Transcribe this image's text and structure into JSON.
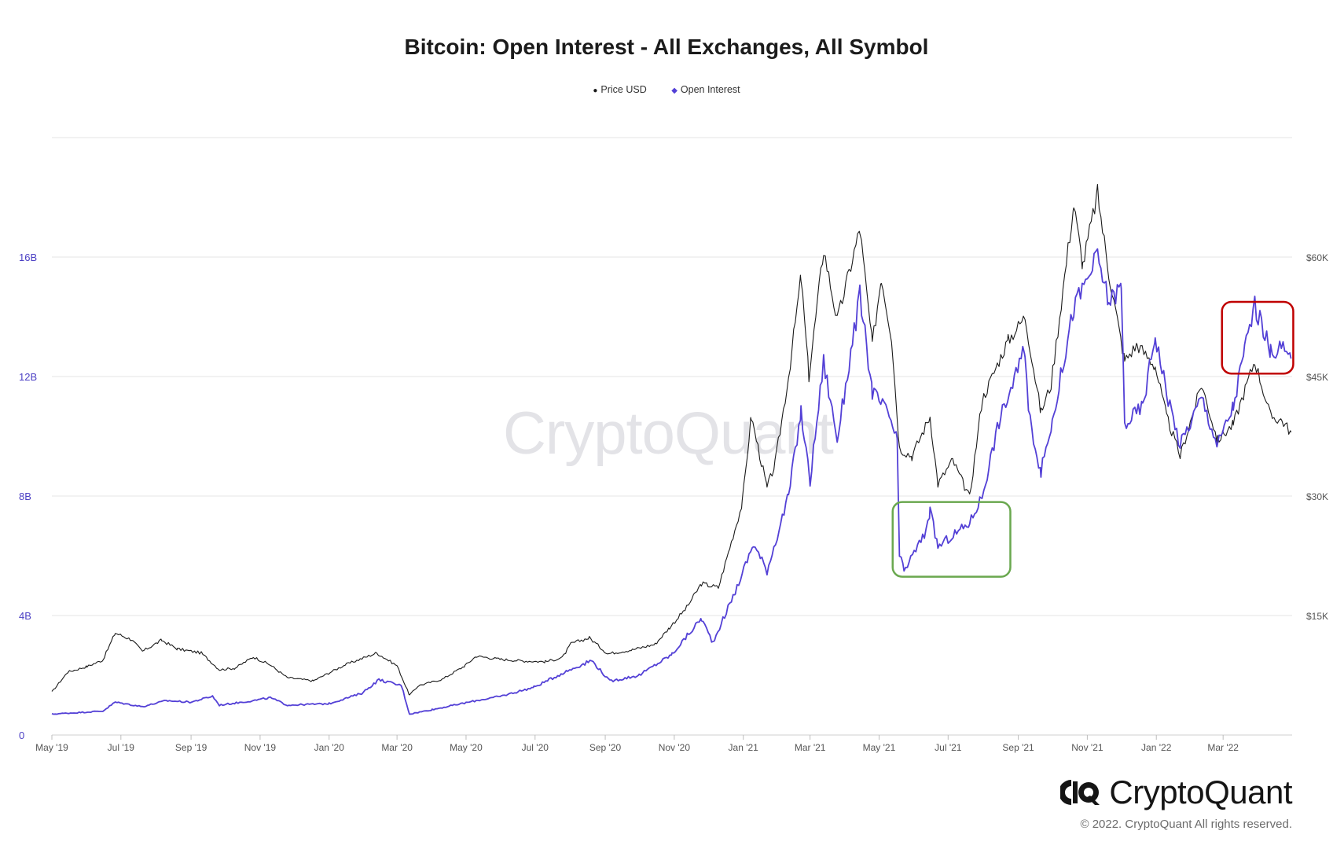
{
  "chart_data": {
    "type": "line",
    "title": "Bitcoin: Open Interest - All Exchanges, All Symbol",
    "legend_position": "top-center",
    "grid": true,
    "x_range": [
      "2019-05-01",
      "2022-05-01"
    ],
    "x_ticks": [
      "May '19",
      "Jul '19",
      "Sep '19",
      "Nov '19",
      "Jan '20",
      "Mar '20",
      "May '20",
      "Jul '20",
      "Sep '20",
      "Nov '20",
      "Jan '21",
      "Mar '21",
      "May '21",
      "Jul '21",
      "Sep '21",
      "Nov '21",
      "Jan '22",
      "Mar '22"
    ],
    "y_left": {
      "range": [
        0,
        20000000000
      ],
      "ticks": [
        0,
        4000000000,
        8000000000,
        12000000000,
        16000000000
      ],
      "tick_labels": [
        "0",
        "4B",
        "8B",
        "12B",
        "16B"
      ],
      "color": "#4b3fc4"
    },
    "y_right": {
      "range": [
        0,
        75000
      ],
      "ticks": [
        15000,
        30000,
        45000,
        60000
      ],
      "tick_labels": [
        "$15K",
        "$30K",
        "$45K",
        "$60K"
      ]
    },
    "series": [
      {
        "name": "Price USD",
        "axis": "right",
        "color": "#1a1a1a",
        "points": [
          [
            "2019-05-01",
            5400
          ],
          [
            "2019-05-15",
            7900
          ],
          [
            "2019-06-01",
            8600
          ],
          [
            "2019-06-15",
            9400
          ],
          [
            "2019-06-26",
            12800
          ],
          [
            "2019-07-10",
            12000
          ],
          [
            "2019-07-20",
            10500
          ],
          [
            "2019-08-06",
            11900
          ],
          [
            "2019-08-20",
            10800
          ],
          [
            "2019-09-10",
            10300
          ],
          [
            "2019-09-26",
            8200
          ],
          [
            "2019-10-10",
            8400
          ],
          [
            "2019-10-26",
            9800
          ],
          [
            "2019-11-10",
            8800
          ],
          [
            "2019-11-25",
            7200
          ],
          [
            "2019-12-18",
            6800
          ],
          [
            "2020-01-15",
            8800
          ],
          [
            "2020-02-12",
            10300
          ],
          [
            "2020-03-01",
            8700
          ],
          [
            "2020-03-12",
            5000
          ],
          [
            "2020-03-20",
            6200
          ],
          [
            "2020-04-10",
            7000
          ],
          [
            "2020-04-30",
            8700
          ],
          [
            "2020-05-10",
            9900
          ],
          [
            "2020-06-01",
            9500
          ],
          [
            "2020-06-20",
            9300
          ],
          [
            "2020-07-10",
            9200
          ],
          [
            "2020-07-25",
            9700
          ],
          [
            "2020-08-02",
            11500
          ],
          [
            "2020-08-18",
            12200
          ],
          [
            "2020-09-03",
            10200
          ],
          [
            "2020-09-25",
            10700
          ],
          [
            "2020-10-15",
            11400
          ],
          [
            "2020-10-28",
            13500
          ],
          [
            "2020-11-12",
            16000
          ],
          [
            "2020-11-25",
            19000
          ],
          [
            "2020-12-10",
            18500
          ],
          [
            "2020-12-20",
            23500
          ],
          [
            "2020-12-31",
            29000
          ],
          [
            "2021-01-08",
            40000
          ],
          [
            "2021-01-22",
            31000
          ],
          [
            "2021-01-29",
            34000
          ],
          [
            "2021-02-10",
            45000
          ],
          [
            "2021-02-21",
            57500
          ],
          [
            "2021-02-28",
            45000
          ],
          [
            "2021-03-13",
            61000
          ],
          [
            "2021-03-25",
            52000
          ],
          [
            "2021-04-14",
            63500
          ],
          [
            "2021-04-25",
            49000
          ],
          [
            "2021-05-03",
            57500
          ],
          [
            "2021-05-12",
            50000
          ],
          [
            "2021-05-19",
            36000
          ],
          [
            "2021-05-30",
            35000
          ],
          [
            "2021-06-15",
            40000
          ],
          [
            "2021-06-22",
            31500
          ],
          [
            "2021-07-05",
            34500
          ],
          [
            "2021-07-20",
            29800
          ],
          [
            "2021-07-31",
            42000
          ],
          [
            "2021-08-15",
            47000
          ],
          [
            "2021-08-23",
            49500
          ],
          [
            "2021-09-07",
            52500
          ],
          [
            "2021-09-21",
            40500
          ],
          [
            "2021-09-30",
            44000
          ],
          [
            "2021-10-15",
            61000
          ],
          [
            "2021-10-20",
            66500
          ],
          [
            "2021-10-28",
            59000
          ],
          [
            "2021-11-10",
            68000
          ],
          [
            "2021-11-20",
            58000
          ],
          [
            "2021-12-04",
            47000
          ],
          [
            "2021-12-15",
            49000
          ],
          [
            "2021-12-31",
            46300
          ],
          [
            "2022-01-10",
            40000
          ],
          [
            "2022-01-22",
            35000
          ],
          [
            "2022-02-10",
            44000
          ],
          [
            "2022-02-24",
            37000
          ],
          [
            "2022-03-10",
            39000
          ],
          [
            "2022-03-29",
            47000
          ],
          [
            "2022-04-12",
            40000
          ],
          [
            "2022-04-22",
            39500
          ],
          [
            "2022-04-30",
            38000
          ]
        ]
      },
      {
        "name": "Open Interest",
        "axis": "left",
        "color": "#5340d6",
        "points": [
          [
            "2019-05-01",
            700000000
          ],
          [
            "2019-06-15",
            800000000
          ],
          [
            "2019-06-26",
            1100000000
          ],
          [
            "2019-07-20",
            950000000
          ],
          [
            "2019-08-10",
            1150000000
          ],
          [
            "2019-09-01",
            1100000000
          ],
          [
            "2019-09-20",
            1300000000
          ],
          [
            "2019-09-26",
            1000000000
          ],
          [
            "2019-10-26",
            1150000000
          ],
          [
            "2019-11-10",
            1250000000
          ],
          [
            "2019-11-25",
            1000000000
          ],
          [
            "2020-01-01",
            1050000000
          ],
          [
            "2020-01-30",
            1400000000
          ],
          [
            "2020-02-14",
            1850000000
          ],
          [
            "2020-03-05",
            1650000000
          ],
          [
            "2020-03-12",
            700000000
          ],
          [
            "2020-04-01",
            850000000
          ],
          [
            "2020-05-10",
            1150000000
          ],
          [
            "2020-06-01",
            1300000000
          ],
          [
            "2020-06-30",
            1600000000
          ],
          [
            "2020-07-27",
            2100000000
          ],
          [
            "2020-08-20",
            2500000000
          ],
          [
            "2020-09-05",
            1800000000
          ],
          [
            "2020-10-01",
            2000000000
          ],
          [
            "2020-10-30",
            2700000000
          ],
          [
            "2020-11-25",
            3900000000
          ],
          [
            "2020-12-05",
            3100000000
          ],
          [
            "2020-12-25",
            4800000000
          ],
          [
            "2021-01-10",
            6400000000
          ],
          [
            "2021-01-22",
            5500000000
          ],
          [
            "2021-02-10",
            8000000000
          ],
          [
            "2021-02-21",
            10800000000
          ],
          [
            "2021-03-01",
            8500000000
          ],
          [
            "2021-03-13",
            12500000000
          ],
          [
            "2021-03-25",
            9900000000
          ],
          [
            "2021-04-14",
            14700000000
          ],
          [
            "2021-04-25",
            11500000000
          ],
          [
            "2021-05-10",
            10700000000
          ],
          [
            "2021-05-17",
            9800000000
          ],
          [
            "2021-05-19",
            6000000000
          ],
          [
            "2021-05-23",
            5500000000
          ],
          [
            "2021-06-10",
            6700000000
          ],
          [
            "2021-06-15",
            7500000000
          ],
          [
            "2021-06-22",
            6300000000
          ],
          [
            "2021-07-20",
            7100000000
          ],
          [
            "2021-07-31",
            8000000000
          ],
          [
            "2021-08-15",
            10500000000
          ],
          [
            "2021-09-07",
            12900000000
          ],
          [
            "2021-09-10",
            10800000000
          ],
          [
            "2021-09-21",
            8800000000
          ],
          [
            "2021-10-01",
            10500000000
          ],
          [
            "2021-10-20",
            14300000000
          ],
          [
            "2021-11-10",
            16000000000
          ],
          [
            "2021-11-20",
            14500000000
          ],
          [
            "2021-12-01",
            15000000000
          ],
          [
            "2021-12-04",
            10400000000
          ],
          [
            "2021-12-20",
            11000000000
          ],
          [
            "2021-12-31",
            13400000000
          ],
          [
            "2022-01-10",
            11500000000
          ],
          [
            "2022-01-22",
            9700000000
          ],
          [
            "2022-02-10",
            11300000000
          ],
          [
            "2022-02-24",
            9700000000
          ],
          [
            "2022-03-10",
            11000000000
          ],
          [
            "2022-03-20",
            12900000000
          ],
          [
            "2022-03-29",
            14400000000
          ],
          [
            "2022-04-12",
            12800000000
          ],
          [
            "2022-04-20",
            13000000000
          ],
          [
            "2022-04-30",
            12600000000
          ]
        ]
      }
    ],
    "annotations": [
      {
        "shape": "rounded-rect",
        "color": "#6aa84f",
        "x": [
          "2021-05-13",
          "2021-08-25"
        ],
        "y_left": [
          5300000000,
          7800000000
        ]
      },
      {
        "shape": "rounded-rect",
        "color": "#c00000",
        "x": [
          "2022-02-28",
          "2022-05-02"
        ],
        "y_left": [
          12100000000,
          14500000000
        ]
      }
    ]
  },
  "watermark": "CryptoQuant",
  "brand": {
    "name": "CryptoQuant",
    "copyright": "© 2022. CryptoQuant All rights reserved."
  }
}
